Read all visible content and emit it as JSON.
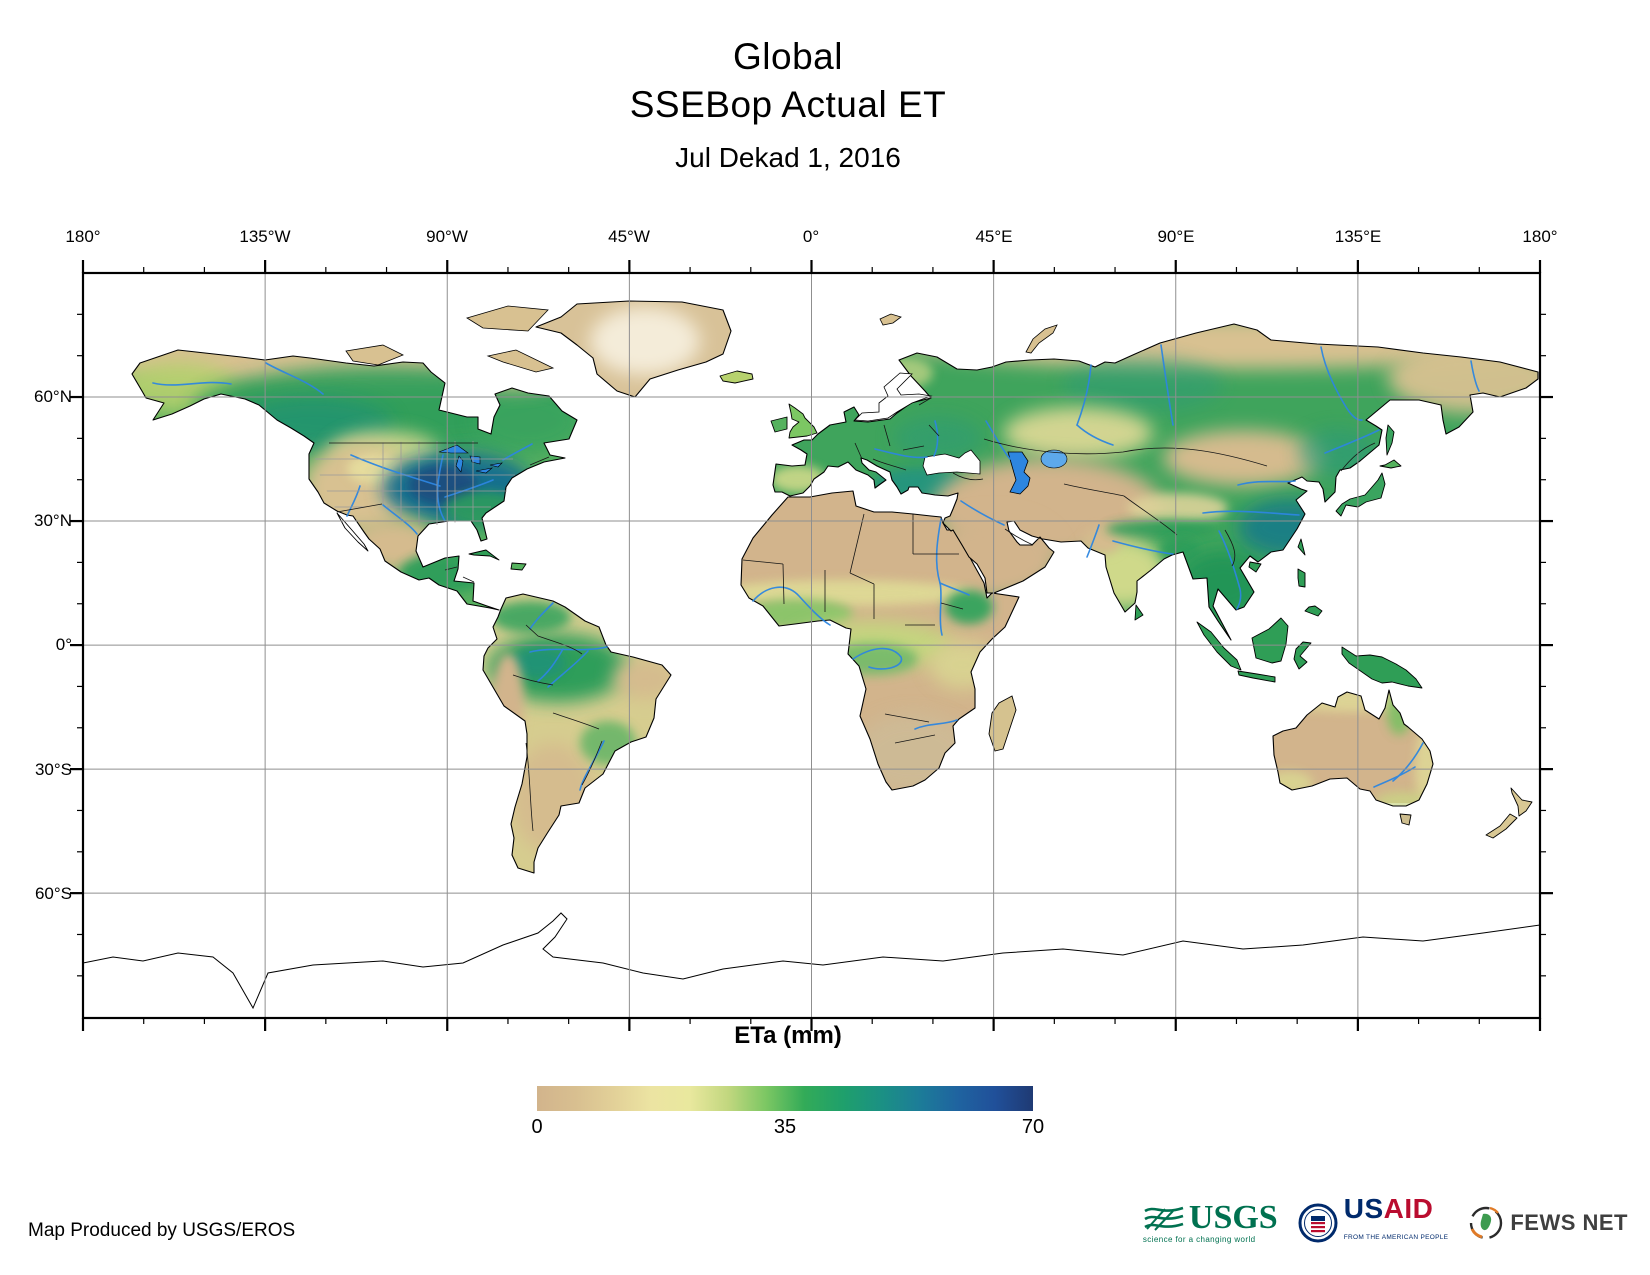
{
  "title": {
    "line1": "Global",
    "line2": "SSEBop Actual ET",
    "date": "Jul Dekad 1, 2016"
  },
  "axes": {
    "lon": [
      "180°",
      "135°W",
      "90°W",
      "45°W",
      "0°",
      "45°E",
      "90°E",
      "135°E",
      "180°"
    ],
    "lat": [
      "60°N",
      "30°N",
      "0°",
      "30°S",
      "60°S"
    ]
  },
  "legend": {
    "title": "ETa (mm)",
    "ticks": [
      "0",
      "35",
      "70"
    ],
    "min": 0,
    "max": 70,
    "gradient": [
      "#d2b48c",
      "#d8bf90",
      "#e2d098",
      "#ece4a2",
      "#e9e89e",
      "#c2d77f",
      "#7cc763",
      "#33ab58",
      "#1fa06b",
      "#1b9183",
      "#1c7d98",
      "#1f64a0",
      "#20509a",
      "#1f3a73"
    ]
  },
  "footer": {
    "credit": "Map Produced by USGS/EROS"
  },
  "logos": {
    "usgs": {
      "name": "USGS",
      "tagline": "science for a changing world"
    },
    "usaid": {
      "part1": "US",
      "part2": "AID",
      "tagline": "FROM THE AMERICAN PEOPLE"
    },
    "fewsnet": {
      "name": "FEWS NET"
    }
  },
  "colors": {
    "ocean": "#ffffff",
    "gridline": "#8f8f8f",
    "coastline": "#000000",
    "lake_water": "#2d86e0",
    "desert": "#d2b48c",
    "vegetation": "#2f9e56",
    "high_et": "#1d4f80",
    "usgs_green": "#007150",
    "usaid_navy": "#002a6c",
    "usaid_red": "#ba0c2f",
    "fews_dark": "#3f3f3f"
  }
}
